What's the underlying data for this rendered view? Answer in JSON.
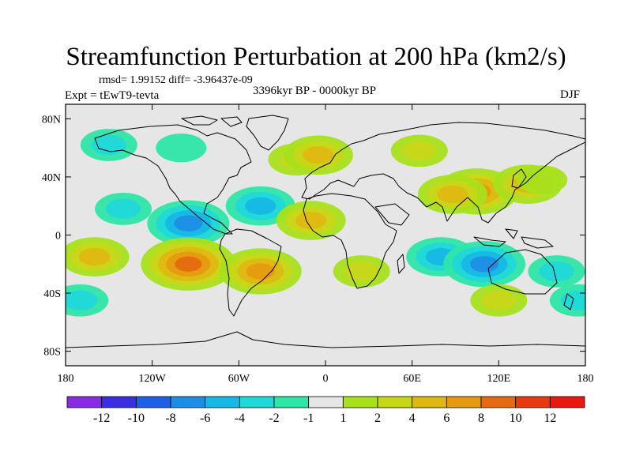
{
  "title": "Streamfunction Perturbation at 200 hPa (km2/s)",
  "rmsd_line": "rmsd= 1.99152 diff= -3.96437e-09",
  "experiment": "Expt = tEwT9-tevta",
  "period": "3396kyr BP - 0000kyr BP",
  "season": "DJF",
  "lat_ticks": [
    "80N",
    "40N",
    "0",
    "40S",
    "80S"
  ],
  "lon_ticks": [
    "180",
    "120W",
    "60W",
    "0",
    "60E",
    "120E",
    "180"
  ],
  "colorbar": {
    "labels": [
      "-12",
      "-10",
      "-8",
      "-6",
      "-4",
      "-2",
      "-1",
      "1",
      "2",
      "4",
      "6",
      "8",
      "10",
      "12"
    ],
    "colors": [
      "#8a2be2",
      "#3a2fe0",
      "#1f5fe6",
      "#1c8ee6",
      "#16b8e6",
      "#20d8d8",
      "#2ee6a8",
      "#e6e6e6",
      "#a8e01c",
      "#c8d618",
      "#e0b812",
      "#e69a10",
      "#e66a10",
      "#e63a10",
      "#e61a10"
    ]
  },
  "anomalies": [
    {
      "lon": -150,
      "lat": 62,
      "value": -2
    },
    {
      "lon": -100,
      "lat": 60,
      "value": -1
    },
    {
      "lon": -20,
      "lat": 52,
      "value": 2
    },
    {
      "lon": -5,
      "lat": 55,
      "value": 4
    },
    {
      "lon": 65,
      "lat": 58,
      "value": 2
    },
    {
      "lon": 105,
      "lat": 30,
      "value": 6
    },
    {
      "lon": 88,
      "lat": 28,
      "value": 4
    },
    {
      "lon": 140,
      "lat": 35,
      "value": 4
    },
    {
      "lon": 150,
      "lat": 38,
      "value": 1
    },
    {
      "lon": -140,
      "lat": 18,
      "value": -2
    },
    {
      "lon": -95,
      "lat": 8,
      "value": -6
    },
    {
      "lon": -45,
      "lat": 20,
      "value": -4
    },
    {
      "lon": -10,
      "lat": 10,
      "value": 4
    },
    {
      "lon": -160,
      "lat": -15,
      "value": 4
    },
    {
      "lon": -95,
      "lat": -20,
      "value": 8
    },
    {
      "lon": -45,
      "lat": -25,
      "value": 6
    },
    {
      "lon": 25,
      "lat": -25,
      "value": 2
    },
    {
      "lon": 80,
      "lat": -15,
      "value": -4
    },
    {
      "lon": 110,
      "lat": -20,
      "value": -6
    },
    {
      "lon": 160,
      "lat": -25,
      "value": -2
    },
    {
      "lon": 120,
      "lat": -45,
      "value": 2
    },
    {
      "lon": -170,
      "lat": -45,
      "value": -2
    },
    {
      "lon": 175,
      "lat": -45,
      "value": -2
    }
  ]
}
